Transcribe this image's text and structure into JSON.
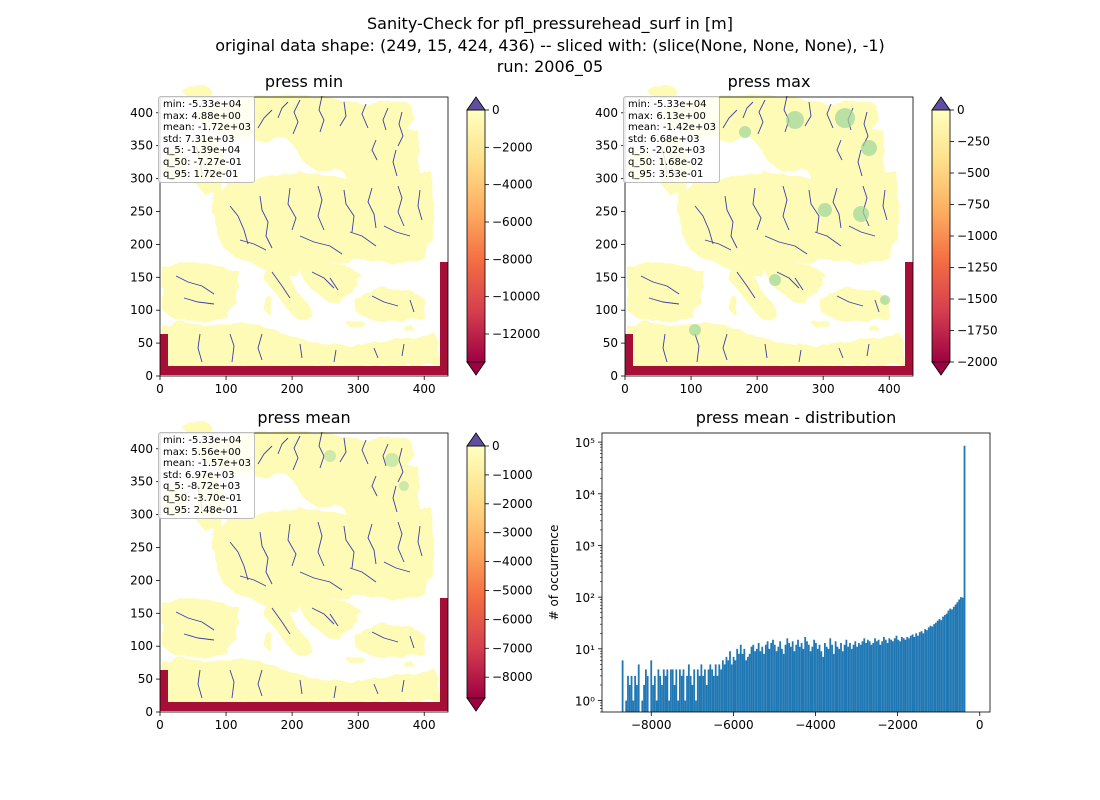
{
  "figure": {
    "title_lines": [
      "Sanity-Check for pfl_pressurehead_surf in [m]",
      "original data shape: (249, 15, 424, 436) -- sliced with: (slice(None, None, None), -1)",
      "run: 2006_05"
    ]
  },
  "colors": {
    "land": "#fdfbb6",
    "river": "#3b3fa6",
    "green": "#9fd79b",
    "boundary": "#a50f38",
    "hist_bar": "#1f77b4",
    "colormap": [
      "#9e0142",
      "#d53e4f",
      "#f46d43",
      "#fdae61",
      "#fee08b",
      "#ffffbf"
    ],
    "cbar_over": "#5e4fa2"
  },
  "chart_data": [
    {
      "type": "heatmap",
      "title": "press min",
      "xlim": [
        0,
        436
      ],
      "ylim": [
        0,
        424
      ],
      "xticks": [
        0,
        100,
        200,
        300,
        400
      ],
      "yticks": [
        0,
        50,
        100,
        150,
        200,
        250,
        300,
        350,
        400
      ],
      "stats": [
        "min: -5.33e+04",
        "max: 4.88e+00",
        "mean: -1.72e+03",
        "std: 7.31e+03",
        "q_5: -1.39e+04",
        "q_50: -7.27e-01",
        "q_95: 1.72e-01"
      ],
      "colorbar": {
        "vmin": -13500,
        "vmax": 0,
        "ticks": [
          0,
          -2000,
          -4000,
          -6000,
          -8000,
          -10000,
          -12000
        ]
      }
    },
    {
      "type": "heatmap",
      "title": "press max",
      "xlim": [
        0,
        436
      ],
      "ylim": [
        0,
        424
      ],
      "xticks": [
        0,
        100,
        200,
        300,
        400
      ],
      "yticks": [
        0,
        50,
        100,
        150,
        200,
        250,
        300,
        350,
        400
      ],
      "stats": [
        "min: -5.33e+04",
        "max: 6.13e+00",
        "mean: -1.42e+03",
        "std: 6.68e+03",
        "q_5: -2.02e+03",
        "q_50: 1.68e-02",
        "q_95: 3.53e-01"
      ],
      "colorbar": {
        "vmin": -2000,
        "vmax": 0,
        "ticks": [
          0,
          -250,
          -500,
          -750,
          -1000,
          -1250,
          -1500,
          -1750,
          -2000
        ]
      }
    },
    {
      "type": "heatmap",
      "title": "press mean",
      "xlim": [
        0,
        436
      ],
      "ylim": [
        0,
        424
      ],
      "xticks": [
        0,
        100,
        200,
        300,
        400
      ],
      "yticks": [
        0,
        50,
        100,
        150,
        200,
        250,
        300,
        350,
        400
      ],
      "stats": [
        "min: -5.33e+04",
        "max: 5.56e+00",
        "mean: -1.57e+03",
        "std: 6.97e+03",
        "q_5: -8.72e+03",
        "q_50: -3.70e-01",
        "q_95: 2.48e-01"
      ],
      "colorbar": {
        "vmin": -8720,
        "vmax": 0,
        "ticks": [
          0,
          -1000,
          -2000,
          -3000,
          -4000,
          -5000,
          -6000,
          -7000,
          -8000
        ]
      }
    },
    {
      "type": "bar",
      "title": "press mean - distribution",
      "xlabel": "",
      "ylabel": "# of occurrence",
      "yscale": "log",
      "xlim": [
        -9200,
        250
      ],
      "ylim": [
        0.6,
        150000
      ],
      "xticks": [
        -8000,
        -6000,
        -4000,
        -2000,
        0
      ],
      "yticks": [
        1,
        10,
        100,
        1000,
        10000,
        100000
      ],
      "ytick_labels": [
        "10⁰",
        "10¹",
        "10²",
        "10³",
        "10⁴",
        "10⁵"
      ],
      "bin_width": 43.6,
      "bins_from": -8720,
      "values": [
        6,
        0,
        1,
        3,
        2,
        3,
        1,
        3,
        2,
        5,
        0,
        1,
        2,
        4,
        3,
        0,
        6,
        2,
        3,
        1,
        4,
        3,
        2,
        4,
        3,
        4,
        1,
        4,
        4,
        2,
        4,
        1,
        4,
        3,
        4,
        1,
        3,
        5,
        3,
        2,
        4,
        1,
        4,
        3,
        5,
        3,
        4,
        2,
        4,
        5,
        4,
        3,
        5,
        3,
        5,
        4,
        6,
        5,
        7,
        6,
        9,
        5,
        7,
        6,
        10,
        8,
        12,
        8,
        10,
        6,
        7,
        8,
        11,
        12,
        9,
        10,
        13,
        9,
        11,
        8,
        12,
        14,
        10,
        13,
        15,
        12,
        9,
        11,
        14,
        10,
        8,
        12,
        16,
        13,
        11,
        14,
        9,
        12,
        15,
        11,
        13,
        10,
        17,
        14,
        12,
        9,
        11,
        15,
        13,
        10,
        12,
        9,
        7,
        13,
        11,
        10,
        16,
        12,
        8,
        14,
        11,
        10,
        13,
        9,
        12,
        15,
        11,
        13,
        10,
        12,
        14,
        11,
        13,
        12,
        14,
        16,
        13,
        15,
        14,
        12,
        13,
        16,
        14,
        15,
        12,
        14,
        17,
        15,
        13,
        16,
        15,
        14,
        16,
        18,
        15,
        14,
        17,
        16,
        15,
        17,
        16,
        18,
        19,
        17,
        20,
        18,
        21,
        22,
        20,
        24,
        23,
        26,
        28,
        27,
        30,
        32,
        35,
        38,
        36,
        42,
        45,
        48,
        55,
        60,
        58,
        65,
        72,
        80,
        90,
        100,
        98,
        85000
      ]
    }
  ]
}
